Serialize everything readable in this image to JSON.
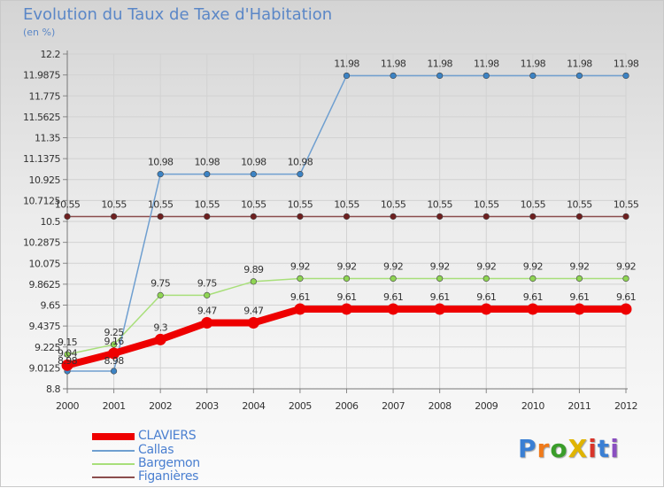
{
  "chart_data": {
    "type": "line",
    "title": "Evolution du Taux de Taxe d'Habitation",
    "unit": "(en %)",
    "x": [
      "2000",
      "2001",
      "2002",
      "2003",
      "2004",
      "2005",
      "2006",
      "2007",
      "2008",
      "2009",
      "2010",
      "2011",
      "2012"
    ],
    "yticks": [
      "12.2",
      "11.9875",
      "11.775",
      "11.5625",
      "11.35",
      "11.1375",
      "10.925",
      "10.7125",
      "10.5",
      "10.2875",
      "10.075",
      "9.8625",
      "9.65",
      "9.4375",
      "9.225",
      "9.0125",
      "8.8"
    ],
    "ylim": [
      8.8,
      12.2
    ],
    "series": [
      {
        "name": "CLAVIERS",
        "color": "#ee0000",
        "values": [
          9.04,
          9.16,
          9.3,
          9.47,
          9.47,
          9.61,
          9.61,
          9.61,
          9.61,
          9.61,
          9.61,
          9.61,
          9.61
        ],
        "labels": [
          "9.04",
          "9.16",
          "9.3",
          "9.47",
          "9.47",
          "9.61",
          "9.61",
          "9.61",
          "9.61",
          "9.61",
          "9.61",
          "9.61",
          "9.61"
        ]
      },
      {
        "name": "Callas",
        "color": "#6f9fd0",
        "marker": "#3c83c4",
        "values": [
          8.98,
          8.98,
          10.98,
          10.98,
          10.98,
          10.98,
          11.98,
          11.98,
          11.98,
          11.98,
          11.98,
          11.98,
          11.98
        ],
        "labels": [
          "8.98",
          "8.98",
          "10.98",
          "10.98",
          "10.98",
          "10.98",
          "11.98",
          "11.98",
          "11.98",
          "11.98",
          "11.98",
          "11.98",
          "11.98"
        ]
      },
      {
        "name": "Bargemon",
        "color": "#a8df7a",
        "marker": "#8fd553",
        "values": [
          9.15,
          9.25,
          9.75,
          9.75,
          9.89,
          9.92,
          9.92,
          9.92,
          9.92,
          9.92,
          9.92,
          9.92,
          9.92
        ],
        "labels": [
          "9.15",
          "9.25",
          "9.75",
          "9.75",
          "9.89",
          "9.92",
          "9.92",
          "9.92",
          "9.92",
          "9.92",
          "9.92",
          "9.92",
          "9.92"
        ]
      },
      {
        "name": "Figanières",
        "color": "#8b4d4d",
        "marker": "#6e1f1f",
        "values": [
          10.55,
          10.55,
          10.55,
          10.55,
          10.55,
          10.55,
          10.55,
          10.55,
          10.55,
          10.55,
          10.55,
          10.55,
          10.55
        ],
        "labels": [
          "10.55",
          "10.55",
          "10.55",
          "10.55",
          "10.55",
          "10.55",
          "10.55",
          "10.55",
          "10.55",
          "10.55",
          "10.55",
          "10.55",
          "10.55"
        ]
      }
    ],
    "grid": true,
    "legend": "bottom-left"
  },
  "logo": {
    "text": "ProXiti",
    "colors": [
      "#3a7fd4",
      "#f07a1a",
      "#3a9d2a",
      "#e0b400",
      "#d8352a",
      "#3a7fd4",
      "#8a4fc0"
    ]
  }
}
